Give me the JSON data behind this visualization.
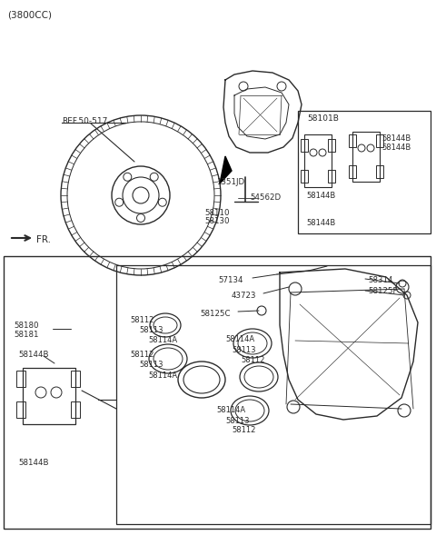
{
  "title": "(3800CC)",
  "bg_color": "#ffffff",
  "line_color": "#2a2a2a",
  "text_color": "#2a2a2a",
  "fig_width": 4.8,
  "fig_height": 5.89,
  "dpi": 100,
  "labels": {
    "ref_50_517": "REF.50-517",
    "fr": "FR.",
    "l1351jd": "1351JD",
    "l54562d": "54562D",
    "l58110": "58110",
    "l58130": "58130",
    "l58101b": "58101B",
    "l58144b": "58144B",
    "l57134": "57134",
    "l43723": "43723",
    "l58125c": "58125C",
    "l58314": "58314",
    "l58125f": "58125F",
    "l58112": "58112",
    "l58113": "58113",
    "l58114a": "58114A",
    "l58180": "58180",
    "l58181": "58181"
  }
}
